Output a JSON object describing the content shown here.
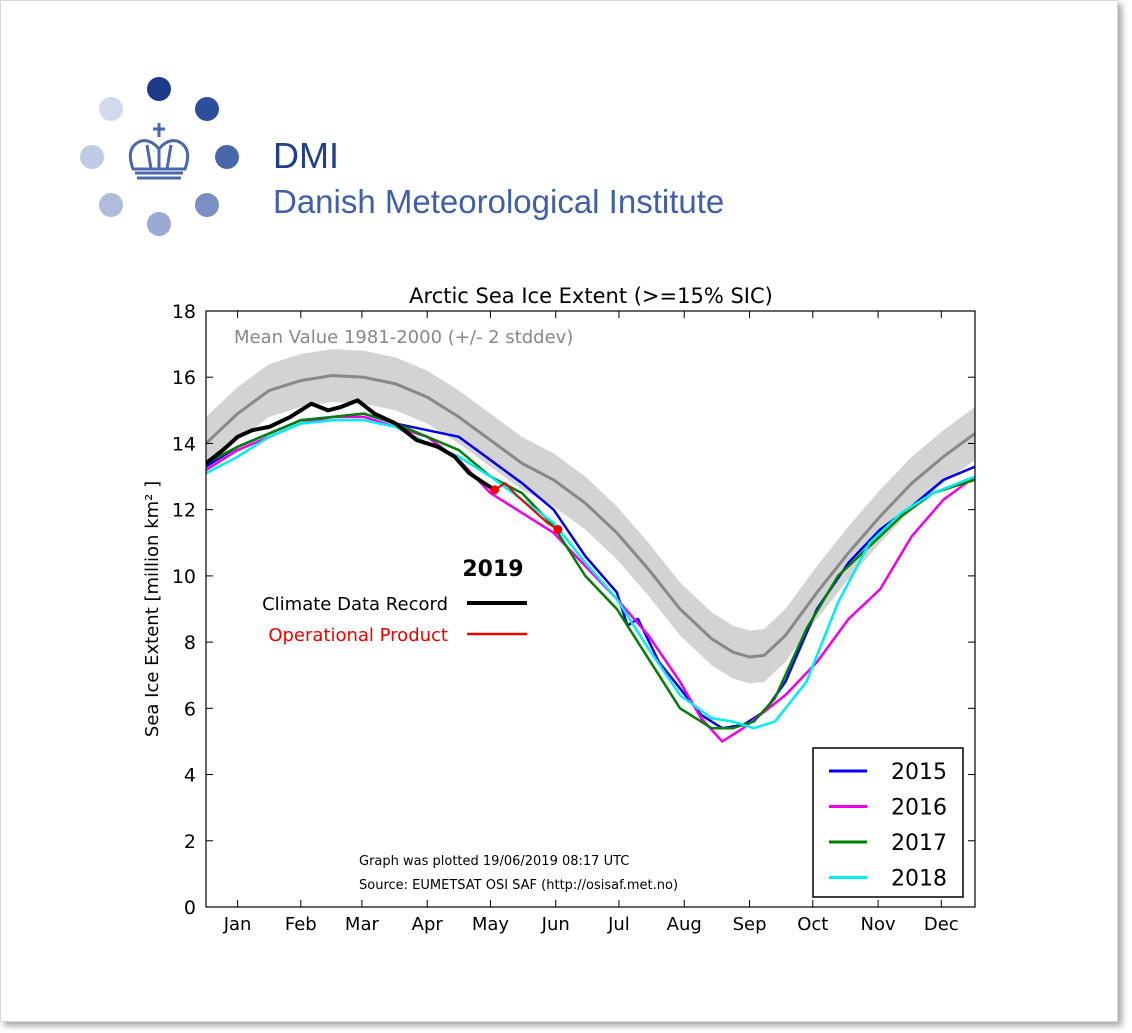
{
  "logo": {
    "abbr": "DMI",
    "name": "Danish Meteorological Institute",
    "colors": [
      "#1c3a8a",
      "#2e4d9a",
      "#4a66ad",
      "#7a8fc4",
      "#9aa9d2",
      "#b0bcdc",
      "#c2cbe5",
      "#d2d9ec"
    ],
    "icon": "crown-icon"
  },
  "chart_data": {
    "type": "line",
    "title": "Arctic Sea Ice Extent (>=15% SIC)",
    "ylabel": "Sea Ice Extent [million km² ]",
    "xlabel": "",
    "ylim": [
      0,
      18
    ],
    "xlim": [
      0,
      365
    ],
    "yticks": [
      0,
      2,
      4,
      6,
      8,
      10,
      12,
      14,
      16,
      18
    ],
    "months": [
      "Jan",
      "Feb",
      "Mar",
      "Apr",
      "May",
      "Jun",
      "Jul",
      "Aug",
      "Sep",
      "Oct",
      "Nov",
      "Dec"
    ],
    "month_days": [
      15,
      45,
      74,
      105,
      135,
      166,
      196,
      227,
      258,
      288,
      319,
      349
    ],
    "mean_label": "Mean Value 1981-2000 (+/- 2 stddev)",
    "mean": {
      "x": [
        0,
        15,
        30,
        45,
        60,
        75,
        90,
        105,
        120,
        135,
        150,
        165,
        180,
        195,
        210,
        225,
        240,
        250,
        258,
        265,
        275,
        290,
        305,
        320,
        335,
        350,
        365
      ],
      "y": [
        14.0,
        14.9,
        15.6,
        15.9,
        16.05,
        16.0,
        15.8,
        15.4,
        14.8,
        14.1,
        13.4,
        12.9,
        12.2,
        11.3,
        10.2,
        9.0,
        8.1,
        7.7,
        7.55,
        7.6,
        8.2,
        9.5,
        10.7,
        11.8,
        12.8,
        13.6,
        14.3
      ],
      "band": 0.8
    },
    "series": [
      {
        "name": "2015",
        "color": "#0000ee",
        "x": [
          0,
          15,
          30,
          45,
          60,
          75,
          90,
          105,
          120,
          135,
          150,
          165,
          180,
          195,
          200,
          205,
          215,
          225,
          235,
          245,
          255,
          265,
          275,
          290,
          305,
          320,
          335,
          350,
          365
        ],
        "y": [
          13.3,
          13.9,
          14.3,
          14.7,
          14.8,
          14.9,
          14.6,
          14.4,
          14.2,
          13.5,
          12.8,
          12.0,
          10.6,
          9.5,
          8.5,
          8.7,
          7.4,
          6.6,
          5.8,
          5.4,
          5.5,
          5.9,
          6.8,
          9.0,
          10.4,
          11.4,
          12.1,
          12.9,
          13.3
        ]
      },
      {
        "name": "2016",
        "color": "#ee00ee",
        "x": [
          0,
          15,
          30,
          45,
          60,
          75,
          90,
          105,
          120,
          135,
          150,
          165,
          180,
          195,
          210,
          225,
          235,
          245,
          255,
          265,
          275,
          290,
          305,
          320,
          335,
          350,
          365
        ],
        "y": [
          13.2,
          13.8,
          14.2,
          14.6,
          14.8,
          14.8,
          14.5,
          14.2,
          13.5,
          12.5,
          11.9,
          11.3,
          10.3,
          9.3,
          8.2,
          6.8,
          5.7,
          5.0,
          5.4,
          5.9,
          6.4,
          7.4,
          8.7,
          9.6,
          11.2,
          12.3,
          13.0
        ]
      },
      {
        "name": "2017",
        "color": "#008000",
        "x": [
          0,
          15,
          30,
          45,
          60,
          75,
          90,
          105,
          120,
          135,
          150,
          165,
          180,
          195,
          210,
          225,
          240,
          250,
          260,
          270,
          285,
          300,
          315,
          330,
          345,
          365
        ],
        "y": [
          13.4,
          13.9,
          14.3,
          14.7,
          14.8,
          14.9,
          14.6,
          14.2,
          13.8,
          13.0,
          12.5,
          11.5,
          10.0,
          9.0,
          7.5,
          6.0,
          5.4,
          5.4,
          5.6,
          6.3,
          8.4,
          10.0,
          10.9,
          11.8,
          12.5,
          12.9
        ]
      },
      {
        "name": "2018",
        "color": "#00eeee",
        "x": [
          0,
          15,
          30,
          45,
          60,
          75,
          90,
          105,
          120,
          135,
          150,
          165,
          180,
          195,
          210,
          225,
          240,
          250,
          260,
          270,
          285,
          300,
          315,
          330,
          345,
          365
        ],
        "y": [
          13.1,
          13.6,
          14.2,
          14.6,
          14.7,
          14.7,
          14.5,
          14.0,
          13.6,
          13.0,
          12.3,
          11.6,
          10.4,
          9.3,
          7.8,
          6.4,
          5.7,
          5.6,
          5.4,
          5.6,
          6.8,
          9.2,
          11.0,
          11.9,
          12.5,
          13.0
        ]
      },
      {
        "name": "Climate Data Record",
        "color": "#000000",
        "width": 4,
        "x": [
          0,
          8,
          15,
          22,
          30,
          40,
          50,
          58,
          64,
          72,
          80,
          90,
          100,
          110,
          118,
          125,
          132,
          137
        ],
        "y": [
          13.4,
          13.8,
          14.2,
          14.4,
          14.5,
          14.8,
          15.2,
          15.0,
          15.1,
          15.3,
          14.9,
          14.6,
          14.1,
          13.9,
          13.6,
          13.1,
          12.8,
          12.6
        ]
      },
      {
        "name": "Operational Product",
        "color": "#ee0000",
        "width": 2,
        "x": [
          137,
          142,
          148,
          155,
          162,
          167
        ],
        "y": [
          12.6,
          12.8,
          12.4,
          12.0,
          11.6,
          11.4
        ]
      }
    ],
    "recent_year_label": "2019",
    "legend": [
      "2015",
      "2016",
      "2017",
      "2018"
    ],
    "legend_position": "bottom-right",
    "annotations": [
      "Graph was plotted 19/06/2019 08:17 UTC",
      "Source: EUMETSAT OSI SAF (http://osisaf.met.no)"
    ]
  }
}
